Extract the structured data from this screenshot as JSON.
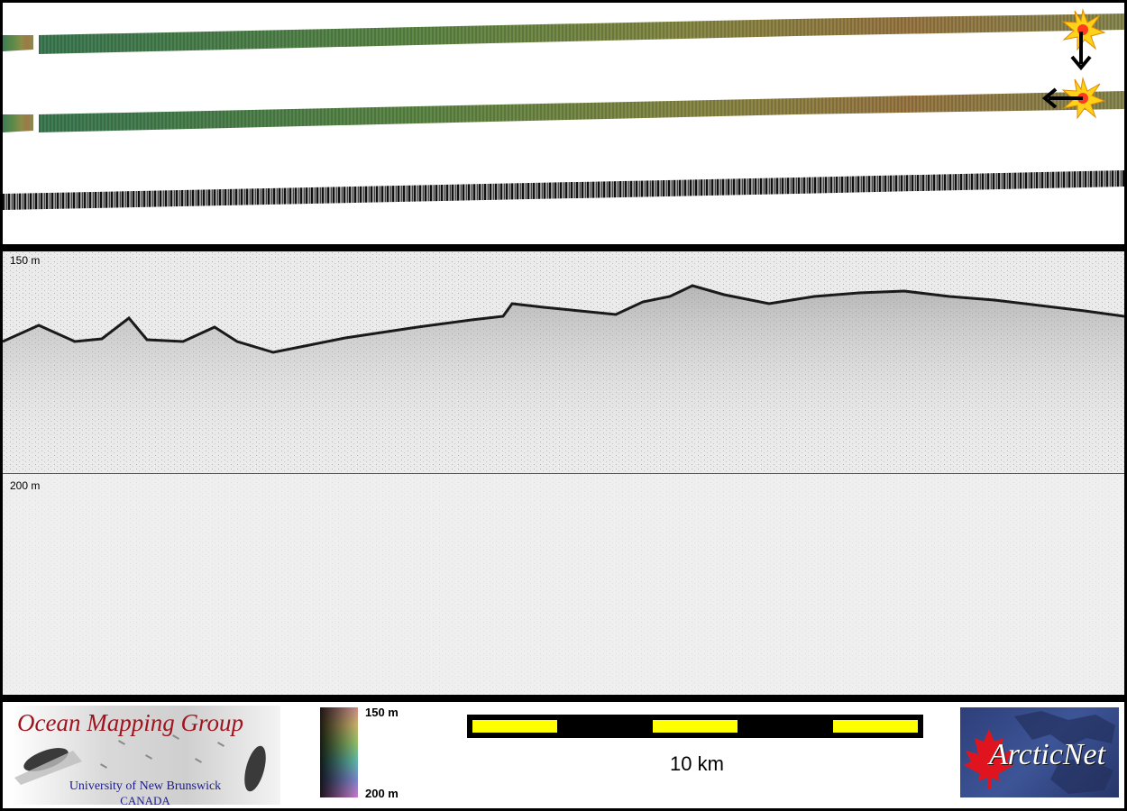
{
  "profile": {
    "depth_top_label": "150 m",
    "depth_mid_label": "200 m"
  },
  "legend": {
    "omg_title": "Ocean Mapping Group",
    "omg_university": "University of New Brunswick",
    "omg_country": "CANADA",
    "colorbar_top": "150 m",
    "colorbar_bottom": "200 m",
    "scale_label": "10 km",
    "arctic_logo_text": "ArcticNet"
  },
  "icons": {
    "start_marker": "starburst-marker-icon",
    "direction_down": "arrow-down-icon",
    "direction_left": "arrow-left-icon"
  },
  "colors": {
    "marker_outer": "#ffd21a",
    "marker_inner": "#ff3b1f",
    "scalebar_fill": "#ffff00",
    "omg_title": "#a0141e",
    "arctic_bg": "#2e3f7a",
    "maple_leaf": "#e0141e"
  }
}
